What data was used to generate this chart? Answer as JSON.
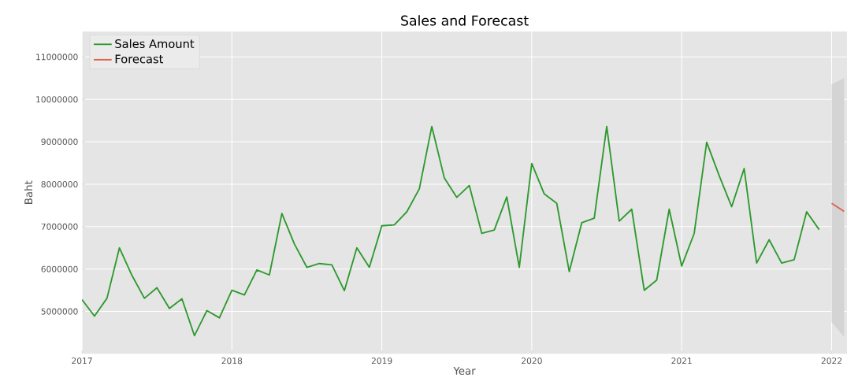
{
  "chart_data": {
    "type": "line",
    "title": "Sales and Forecast",
    "xlabel": "Year",
    "ylabel": "Baht",
    "x": [
      "2017-01",
      "2017-02",
      "2017-03",
      "2017-04",
      "2017-05",
      "2017-06",
      "2017-07",
      "2017-08",
      "2017-09",
      "2017-10",
      "2017-11",
      "2017-12",
      "2018-01",
      "2018-02",
      "2018-03",
      "2018-04",
      "2018-05",
      "2018-06",
      "2018-07",
      "2018-08",
      "2018-09",
      "2018-10",
      "2018-11",
      "2018-12",
      "2019-01",
      "2019-02",
      "2019-03",
      "2019-04",
      "2019-05",
      "2019-06",
      "2019-07",
      "2019-08",
      "2019-09",
      "2019-10",
      "2019-11",
      "2019-12",
      "2020-01",
      "2020-02",
      "2020-03",
      "2020-04",
      "2020-05",
      "2020-06",
      "2020-07",
      "2020-08",
      "2020-09",
      "2020-10",
      "2020-11",
      "2020-12",
      "2021-01",
      "2021-02",
      "2021-03",
      "2021-04",
      "2021-05",
      "2021-06",
      "2021-07",
      "2021-08",
      "2021-09",
      "2021-10",
      "2021-11",
      "2021-12"
    ],
    "series": [
      {
        "name": "Sales Amount",
        "color": "#2e9a2e",
        "values": [
          5280000,
          4890000,
          5310000,
          6500000,
          5850000,
          5310000,
          5560000,
          5070000,
          5300000,
          4430000,
          5020000,
          4850000,
          5500000,
          5390000,
          5980000,
          5860000,
          7310000,
          6590000,
          6040000,
          6130000,
          6100000,
          5490000,
          6500000,
          6040000,
          7020000,
          7040000,
          7350000,
          7890000,
          9360000,
          8150000,
          7690000,
          7970000,
          6840000,
          6920000,
          7700000,
          6040000,
          8490000,
          7770000,
          7550000,
          5940000,
          7090000,
          7200000,
          9360000,
          7130000,
          7410000,
          5500000,
          5740000,
          7410000,
          6070000,
          6840000,
          8990000,
          8200000,
          7470000,
          8370000,
          6140000,
          6690000,
          6140000,
          6220000,
          7350000,
          6930000
        ]
      },
      {
        "name": "Forecast",
        "color": "#e2604a",
        "x": [
          "2022-01",
          "2022-02"
        ],
        "values": [
          7550000,
          7360000
        ],
        "lower": [
          4750000,
          4400000
        ],
        "upper": [
          10350000,
          10500000
        ]
      }
    ],
    "xlim": [
      "2017-01",
      "2022-02-08"
    ],
    "ylim": [
      4000000,
      11600000
    ],
    "xticks": [
      {
        "value": "2017",
        "label": "2017"
      },
      {
        "value": "2018",
        "label": "2018"
      },
      {
        "value": "2019",
        "label": "2019"
      },
      {
        "value": "2020",
        "label": "2020"
      },
      {
        "value": "2021",
        "label": "2021"
      },
      {
        "value": "2022",
        "label": "2022"
      }
    ],
    "yticks": [
      5000000,
      6000000,
      7000000,
      8000000,
      9000000,
      10000000,
      11000000
    ],
    "grid": true,
    "legend": "top left",
    "marker": "none",
    "line_style": "solid"
  }
}
